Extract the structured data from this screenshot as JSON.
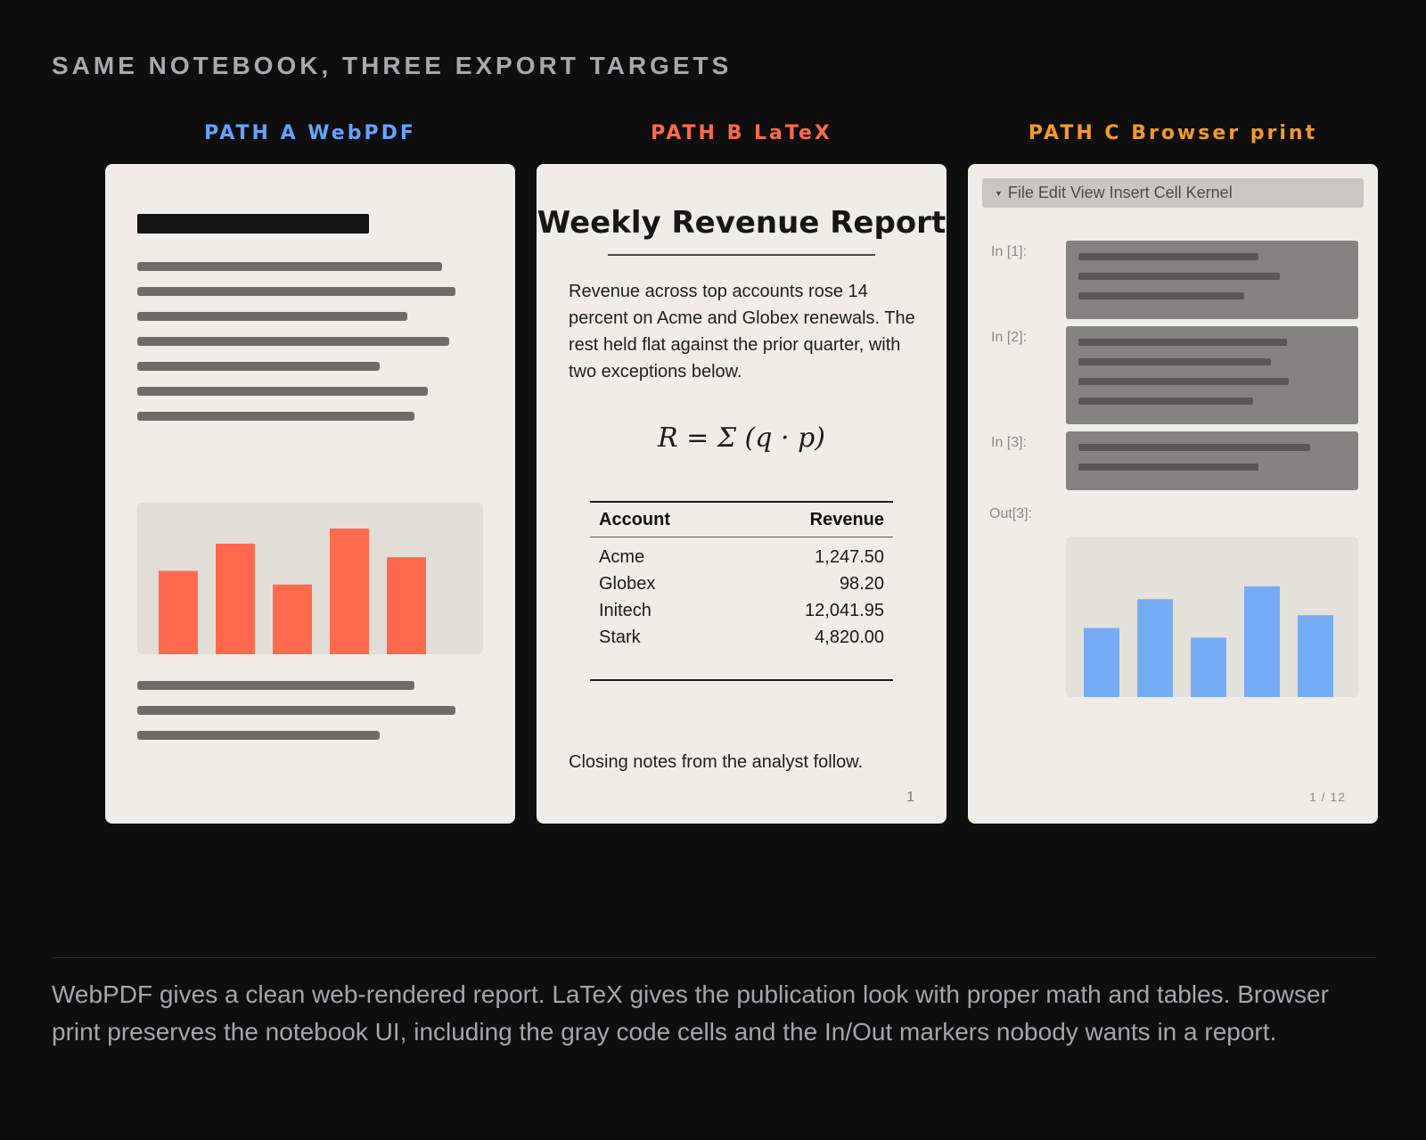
{
  "heading": "SAME NOTEBOOK, THREE EXPORT TARGETS",
  "columns": [
    {
      "label": "PATH A WebPDF",
      "color": "#66a3ff"
    },
    {
      "label": "PATH B LaTeX",
      "color": "#ff6a4d"
    },
    {
      "label": "PATH C Browser print",
      "color": "#f39a2b"
    }
  ],
  "path_a": {
    "bar_color": "#ff6a4d",
    "chart_bg": "#e2ded7",
    "bar_values": [
      0.55,
      0.73,
      0.46,
      0.83,
      0.64
    ]
  },
  "path_b": {
    "title": "Weekly Revenue Report",
    "paragraph": "Revenue across top accounts rose 14 percent on Acme and Globex renewals. The rest held flat against the prior quarter, with two exceptions below.",
    "formula": "R = Σ (q · p)",
    "table": {
      "headers": [
        "Account",
        "Revenue"
      ],
      "rows": [
        [
          "Acme",
          "1,247.50"
        ],
        [
          "Globex",
          "98.20"
        ],
        [
          "Initech",
          "12,041.95"
        ],
        [
          "Stark",
          "4,820.00"
        ]
      ]
    },
    "closing": "Closing notes from the analyst follow.",
    "page_number": "1"
  },
  "path_c": {
    "menubar": "File Edit View Insert Cell Kernel",
    "prompts": [
      "In [1]:",
      "In [2]:",
      "In [3]:",
      "Out[3]:"
    ],
    "bar_color": "#76acf5",
    "chart_bg": "#e4e1db",
    "bar_values": [
      0.43,
      0.61,
      0.37,
      0.69,
      0.51
    ],
    "page_count": "1 / 12"
  },
  "caption": "WebPDF gives a clean web-rendered report. LaTeX gives the publication look with proper math and tables. Browser print preserves the notebook UI, including the gray code cells and the In/Out markers nobody wants in a report."
}
